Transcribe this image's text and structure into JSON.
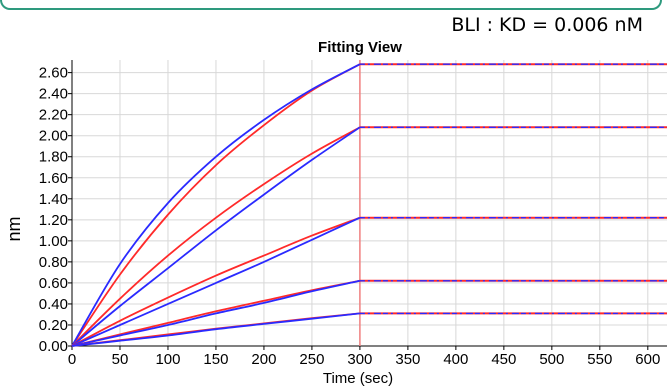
{
  "header": {
    "kd_text": "BLI : KD = 0.006 nM"
  },
  "colors": {
    "fit": "#ff2a2a",
    "data": "#2a2aff",
    "grid": "#d8d8d8",
    "marker": "#f08080",
    "frame": "#2e9a7e"
  },
  "chart_data": {
    "type": "line",
    "title": "Fitting View",
    "xlabel": "Time (sec)",
    "ylabel": "nm",
    "xlim": [
      0,
      620
    ],
    "ylim": [
      0,
      2.72
    ],
    "x_ticks": [
      0,
      50,
      100,
      150,
      200,
      250,
      300,
      350,
      400,
      450,
      500,
      550,
      600
    ],
    "x_tick_labels": [
      "0",
      "50",
      "100",
      "150",
      "200",
      "250",
      "300",
      "350",
      "400",
      "450",
      "500",
      "550",
      "600"
    ],
    "y_ticks": [
      0,
      0.2,
      0.4,
      0.6,
      0.8,
      1.0,
      1.2,
      1.4,
      1.6,
      1.8,
      2.0,
      2.2,
      2.4,
      2.6
    ],
    "y_tick_labels": [
      "0.00",
      "0.20",
      "0.40",
      "0.60",
      "0.80",
      "1.00",
      "1.20",
      "1.40",
      "1.60",
      "1.80",
      "2.00",
      "2.20",
      "2.40",
      "2.60"
    ],
    "grid": true,
    "association_end": 300,
    "curves": [
      {
        "plateau": 2.68,
        "data": [
          [
            0,
            0
          ],
          [
            50,
            0.78
          ],
          [
            100,
            1.36
          ],
          [
            150,
            1.8
          ],
          [
            200,
            2.15
          ],
          [
            250,
            2.44
          ],
          [
            300,
            2.68
          ],
          [
            620,
            2.68
          ]
        ],
        "fit": [
          [
            0,
            0
          ],
          [
            50,
            0.68
          ],
          [
            100,
            1.25
          ],
          [
            150,
            1.72
          ],
          [
            200,
            2.1
          ],
          [
            250,
            2.43
          ],
          [
            300,
            2.68
          ],
          [
            620,
            2.68
          ]
        ]
      },
      {
        "plateau": 2.08,
        "data": [
          [
            0,
            0
          ],
          [
            50,
            0.38
          ],
          [
            100,
            0.74
          ],
          [
            150,
            1.1
          ],
          [
            200,
            1.44
          ],
          [
            250,
            1.77
          ],
          [
            300,
            2.08
          ],
          [
            620,
            2.08
          ]
        ],
        "fit": [
          [
            0,
            0
          ],
          [
            50,
            0.45
          ],
          [
            100,
            0.86
          ],
          [
            150,
            1.22
          ],
          [
            200,
            1.54
          ],
          [
            250,
            1.83
          ],
          [
            300,
            2.08
          ],
          [
            620,
            2.08
          ]
        ]
      },
      {
        "plateau": 1.22,
        "data": [
          [
            0,
            0
          ],
          [
            50,
            0.2
          ],
          [
            100,
            0.4
          ],
          [
            150,
            0.6
          ],
          [
            200,
            0.8
          ],
          [
            250,
            1.01
          ],
          [
            300,
            1.22
          ],
          [
            620,
            1.22
          ]
        ],
        "fit": [
          [
            0,
            0
          ],
          [
            50,
            0.24
          ],
          [
            100,
            0.46
          ],
          [
            150,
            0.67
          ],
          [
            200,
            0.86
          ],
          [
            250,
            1.05
          ],
          [
            300,
            1.22
          ],
          [
            620,
            1.22
          ]
        ]
      },
      {
        "plateau": 0.62,
        "data": [
          [
            0,
            0
          ],
          [
            50,
            0.1
          ],
          [
            100,
            0.2
          ],
          [
            150,
            0.31
          ],
          [
            200,
            0.41
          ],
          [
            250,
            0.52
          ],
          [
            300,
            0.62
          ],
          [
            620,
            0.62
          ]
        ],
        "fit": [
          [
            0,
            0
          ],
          [
            50,
            0.11
          ],
          [
            100,
            0.22
          ],
          [
            150,
            0.33
          ],
          [
            200,
            0.43
          ],
          [
            250,
            0.53
          ],
          [
            300,
            0.62
          ],
          [
            620,
            0.62
          ]
        ]
      },
      {
        "plateau": 0.31,
        "data": [
          [
            0,
            0
          ],
          [
            50,
            0.05
          ],
          [
            100,
            0.1
          ],
          [
            150,
            0.16
          ],
          [
            200,
            0.21
          ],
          [
            250,
            0.26
          ],
          [
            300,
            0.31
          ],
          [
            620,
            0.31
          ]
        ],
        "fit": [
          [
            0,
            0
          ],
          [
            50,
            0.055
          ],
          [
            100,
            0.11
          ],
          [
            150,
            0.165
          ],
          [
            200,
            0.215
          ],
          [
            250,
            0.265
          ],
          [
            300,
            0.31
          ],
          [
            620,
            0.31
          ]
        ]
      }
    ]
  }
}
